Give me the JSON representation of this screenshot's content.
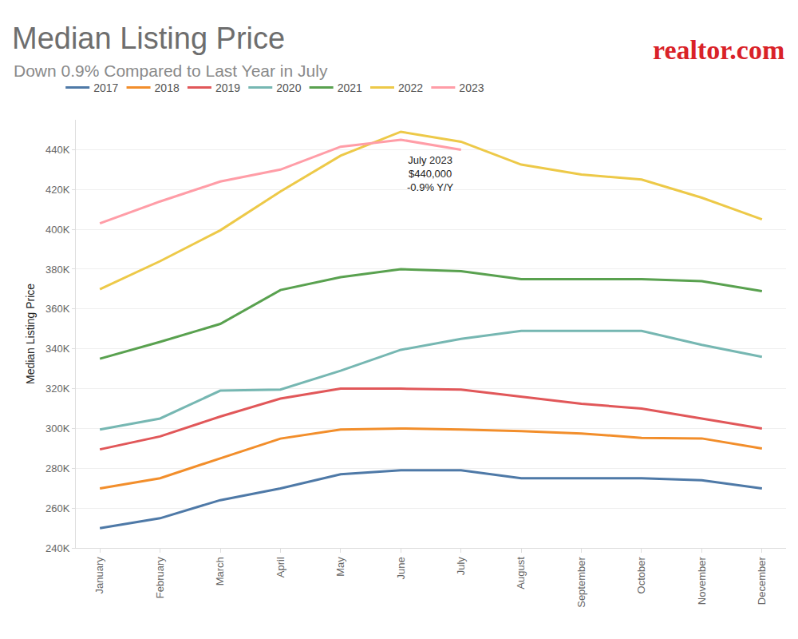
{
  "chart_data": {
    "type": "line",
    "title": "Median Listing Price",
    "subtitle": "Down 0.9% Compared to Last Year in July",
    "brand": "realtor.com",
    "y_label": "Median Listing Price",
    "categories": [
      "January",
      "February",
      "March",
      "April",
      "May",
      "June",
      "July",
      "August",
      "September",
      "October",
      "November",
      "December"
    ],
    "series": [
      {
        "name": "2017",
        "color": "#4e79a7",
        "values": [
          249900,
          254900,
          264000,
          269900,
          277000,
          279000,
          279000,
          275000,
          275000,
          275000,
          274000,
          269900
        ]
      },
      {
        "name": "2018",
        "color": "#f28e2b",
        "values": [
          269900,
          275000,
          285000,
          294900,
          299500,
          300000,
          299500,
          298700,
          297500,
          295300,
          295000,
          289900
        ]
      },
      {
        "name": "2019",
        "color": "#e15759",
        "values": [
          289500,
          296000,
          306000,
          315000,
          320000,
          320000,
          319500,
          315800,
          312400,
          310000,
          305000,
          300000
        ]
      },
      {
        "name": "2020",
        "color": "#76b7b2",
        "values": [
          299500,
          305000,
          319000,
          319500,
          329000,
          339500,
          345000,
          349000,
          349000,
          349000,
          342000,
          336000
        ]
      },
      {
        "name": "2021",
        "color": "#59a14f",
        "values": [
          335000,
          343500,
          352500,
          369500,
          376000,
          380000,
          379000,
          375000,
          375000,
          375000,
          374000,
          369000
        ]
      },
      {
        "name": "2022",
        "color": "#edc948",
        "values": [
          369900,
          384000,
          399500,
          419000,
          437000,
          449000,
          444000,
          432500,
          427500,
          425000,
          415900,
          405000
        ]
      },
      {
        "name": "2023",
        "color": "#ff9da7",
        "values": [
          403000,
          414000,
          424000,
          430000,
          441500,
          445000,
          440000,
          null,
          null,
          null,
          null,
          null
        ]
      }
    ],
    "annotation": {
      "text": [
        "July 2023",
        "$440,000",
        "-0.9% Y/Y"
      ]
    },
    "ylim": [
      240000,
      455000
    ],
    "yticks": [
      {
        "value": 240000,
        "label": "240K"
      },
      {
        "value": 260000,
        "label": "260K"
      },
      {
        "value": 280000,
        "label": "280K"
      },
      {
        "value": 300000,
        "label": "300K"
      },
      {
        "value": 320000,
        "label": "320K"
      },
      {
        "value": 340000,
        "label": "340K"
      },
      {
        "value": 360000,
        "label": "360K"
      },
      {
        "value": 380000,
        "label": "380K"
      },
      {
        "value": 400000,
        "label": "400K"
      },
      {
        "value": 420000,
        "label": "420K"
      },
      {
        "value": 440000,
        "label": "440K"
      }
    ],
    "grid": true,
    "legend": "top"
  }
}
